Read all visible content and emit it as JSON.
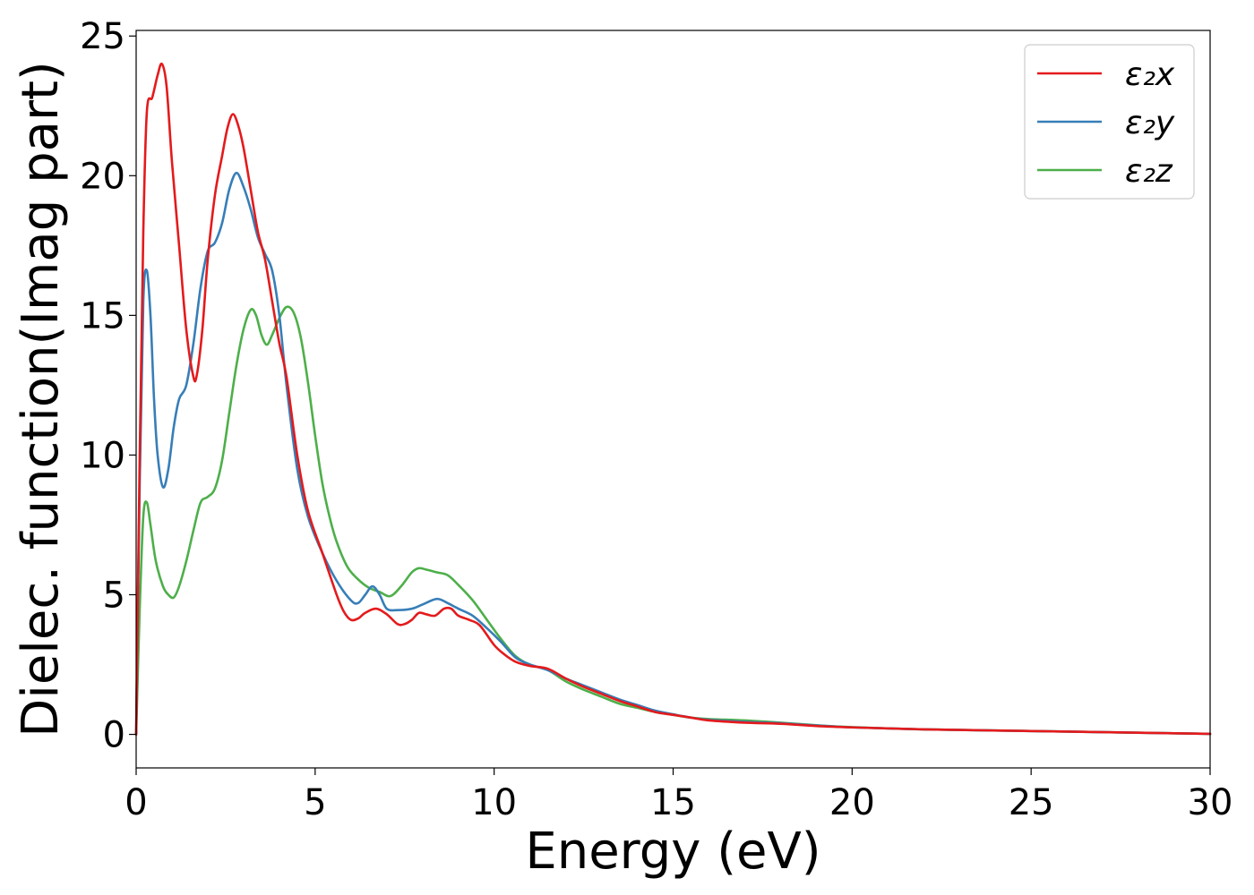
{
  "chart_data": {
    "type": "line",
    "title": "",
    "xlabel": "Energy (eV)",
    "ylabel": "Dielec. function(Imag part)",
    "xlim": [
      0,
      30
    ],
    "ylim": [
      -1.2,
      25.2
    ],
    "xticks": [
      0,
      5,
      10,
      15,
      20,
      25,
      30
    ],
    "yticks": [
      0,
      5,
      10,
      15,
      20,
      25
    ],
    "grid": false,
    "legend_position": "top-right",
    "series": [
      {
        "name": "ε₂x",
        "color": "#e41a1c",
        "points": [
          [
            0,
            0
          ],
          [
            0.1,
            10
          ],
          [
            0.2,
            18
          ],
          [
            0.3,
            22.3
          ],
          [
            0.45,
            22.8
          ],
          [
            0.6,
            23.6
          ],
          [
            0.72,
            24.0
          ],
          [
            0.85,
            23.2
          ],
          [
            1.0,
            20.5
          ],
          [
            1.2,
            17.5
          ],
          [
            1.4,
            14.5
          ],
          [
            1.6,
            12.8
          ],
          [
            1.7,
            12.9
          ],
          [
            1.85,
            14.5
          ],
          [
            2.0,
            17.0
          ],
          [
            2.2,
            19.3
          ],
          [
            2.4,
            20.7
          ],
          [
            2.55,
            21.7
          ],
          [
            2.7,
            22.2
          ],
          [
            2.85,
            21.8
          ],
          [
            3.0,
            21.0
          ],
          [
            3.2,
            19.5
          ],
          [
            3.4,
            18.0
          ],
          [
            3.6,
            17.0
          ],
          [
            3.8,
            15.5
          ],
          [
            4.0,
            14.0
          ],
          [
            4.2,
            12.8
          ],
          [
            4.5,
            10.0
          ],
          [
            4.8,
            8.0
          ],
          [
            5.2,
            6.5
          ],
          [
            5.6,
            5.0
          ],
          [
            5.8,
            4.4
          ],
          [
            6.0,
            4.1
          ],
          [
            6.2,
            4.15
          ],
          [
            6.4,
            4.35
          ],
          [
            6.7,
            4.5
          ],
          [
            7.0,
            4.3
          ],
          [
            7.3,
            3.95
          ],
          [
            7.5,
            3.95
          ],
          [
            7.7,
            4.1
          ],
          [
            7.9,
            4.35
          ],
          [
            8.1,
            4.3
          ],
          [
            8.35,
            4.25
          ],
          [
            8.6,
            4.5
          ],
          [
            8.8,
            4.5
          ],
          [
            9.0,
            4.25
          ],
          [
            9.3,
            4.1
          ],
          [
            9.6,
            3.9
          ],
          [
            10.0,
            3.2
          ],
          [
            10.3,
            2.85
          ],
          [
            10.6,
            2.6
          ],
          [
            11.0,
            2.45
          ],
          [
            11.5,
            2.35
          ],
          [
            12.0,
            2.0
          ],
          [
            12.5,
            1.7
          ],
          [
            13.0,
            1.45
          ],
          [
            13.5,
            1.2
          ],
          [
            14.0,
            1.0
          ],
          [
            14.5,
            0.8
          ],
          [
            15.0,
            0.7
          ],
          [
            15.5,
            0.6
          ],
          [
            16.0,
            0.5
          ],
          [
            17.0,
            0.42
          ],
          [
            18.0,
            0.38
          ],
          [
            19.0,
            0.3
          ],
          [
            20.0,
            0.25
          ],
          [
            22.0,
            0.18
          ],
          [
            25.0,
            0.12
          ],
          [
            28.0,
            0.06
          ],
          [
            30.0,
            0.02
          ]
        ]
      },
      {
        "name": "ε₂y",
        "color": "#377eb8",
        "points": [
          [
            0,
            0
          ],
          [
            0.1,
            9
          ],
          [
            0.2,
            15.5
          ],
          [
            0.3,
            16.6
          ],
          [
            0.4,
            15.0
          ],
          [
            0.5,
            12.0
          ],
          [
            0.6,
            10.0
          ],
          [
            0.75,
            8.85
          ],
          [
            0.9,
            9.5
          ],
          [
            1.05,
            11.0
          ],
          [
            1.2,
            12.0
          ],
          [
            1.4,
            12.5
          ],
          [
            1.6,
            14.0
          ],
          [
            1.8,
            16.0
          ],
          [
            2.0,
            17.3
          ],
          [
            2.2,
            17.6
          ],
          [
            2.4,
            18.3
          ],
          [
            2.6,
            19.5
          ],
          [
            2.8,
            20.1
          ],
          [
            3.0,
            19.6
          ],
          [
            3.2,
            18.8
          ],
          [
            3.4,
            17.8
          ],
          [
            3.6,
            17.2
          ],
          [
            3.8,
            16.6
          ],
          [
            4.0,
            15.0
          ],
          [
            4.2,
            12.5
          ],
          [
            4.5,
            9.5
          ],
          [
            4.8,
            7.8
          ],
          [
            5.2,
            6.5
          ],
          [
            5.6,
            5.5
          ],
          [
            6.0,
            4.8
          ],
          [
            6.2,
            4.7
          ],
          [
            6.4,
            5.0
          ],
          [
            6.6,
            5.3
          ],
          [
            6.8,
            5.0
          ],
          [
            7.0,
            4.5
          ],
          [
            7.3,
            4.45
          ],
          [
            7.7,
            4.5
          ],
          [
            8.0,
            4.65
          ],
          [
            8.4,
            4.85
          ],
          [
            8.7,
            4.7
          ],
          [
            9.0,
            4.5
          ],
          [
            9.4,
            4.25
          ],
          [
            9.8,
            3.8
          ],
          [
            10.2,
            3.3
          ],
          [
            10.6,
            2.75
          ],
          [
            11.0,
            2.5
          ],
          [
            11.5,
            2.3
          ],
          [
            12.0,
            2.0
          ],
          [
            12.5,
            1.75
          ],
          [
            13.0,
            1.5
          ],
          [
            13.5,
            1.25
          ],
          [
            14.0,
            1.05
          ],
          [
            14.5,
            0.85
          ],
          [
            15.0,
            0.72
          ],
          [
            15.5,
            0.6
          ],
          [
            16.0,
            0.52
          ],
          [
            17.0,
            0.45
          ],
          [
            18.0,
            0.4
          ],
          [
            19.0,
            0.32
          ],
          [
            20.0,
            0.25
          ],
          [
            22.0,
            0.18
          ],
          [
            25.0,
            0.12
          ],
          [
            28.0,
            0.06
          ],
          [
            30.0,
            0.02
          ]
        ]
      },
      {
        "name": "ε₂z",
        "color": "#4daf4a",
        "points": [
          [
            0,
            0
          ],
          [
            0.1,
            4.5
          ],
          [
            0.2,
            7.8
          ],
          [
            0.3,
            8.3
          ],
          [
            0.4,
            7.5
          ],
          [
            0.55,
            6.2
          ],
          [
            0.75,
            5.3
          ],
          [
            0.9,
            5.0
          ],
          [
            1.05,
            4.9
          ],
          [
            1.2,
            5.3
          ],
          [
            1.4,
            6.2
          ],
          [
            1.6,
            7.3
          ],
          [
            1.8,
            8.3
          ],
          [
            2.0,
            8.5
          ],
          [
            2.2,
            8.8
          ],
          [
            2.4,
            9.8
          ],
          [
            2.6,
            11.5
          ],
          [
            2.8,
            13.2
          ],
          [
            3.0,
            14.5
          ],
          [
            3.2,
            15.2
          ],
          [
            3.35,
            15.0
          ],
          [
            3.5,
            14.3
          ],
          [
            3.65,
            13.95
          ],
          [
            3.8,
            14.3
          ],
          [
            4.0,
            14.9
          ],
          [
            4.2,
            15.3
          ],
          [
            4.4,
            15.1
          ],
          [
            4.6,
            14.2
          ],
          [
            4.8,
            12.6
          ],
          [
            5.0,
            10.7
          ],
          [
            5.2,
            9.0
          ],
          [
            5.4,
            7.8
          ],
          [
            5.6,
            6.9
          ],
          [
            5.9,
            6.0
          ],
          [
            6.2,
            5.55
          ],
          [
            6.5,
            5.25
          ],
          [
            6.8,
            5.1
          ],
          [
            7.1,
            4.95
          ],
          [
            7.4,
            5.3
          ],
          [
            7.7,
            5.8
          ],
          [
            7.9,
            5.95
          ],
          [
            8.1,
            5.9
          ],
          [
            8.4,
            5.8
          ],
          [
            8.7,
            5.7
          ],
          [
            9.0,
            5.35
          ],
          [
            9.4,
            4.8
          ],
          [
            9.8,
            4.1
          ],
          [
            10.2,
            3.4
          ],
          [
            10.6,
            2.8
          ],
          [
            11.0,
            2.5
          ],
          [
            11.5,
            2.3
          ],
          [
            12.0,
            1.9
          ],
          [
            12.5,
            1.6
          ],
          [
            13.0,
            1.35
          ],
          [
            13.5,
            1.1
          ],
          [
            14.0,
            0.95
          ],
          [
            14.5,
            0.8
          ],
          [
            15.0,
            0.7
          ],
          [
            15.5,
            0.6
          ],
          [
            16.0,
            0.55
          ],
          [
            17.0,
            0.5
          ],
          [
            18.0,
            0.42
          ],
          [
            19.0,
            0.33
          ],
          [
            20.0,
            0.26
          ],
          [
            22.0,
            0.18
          ],
          [
            25.0,
            0.12
          ],
          [
            28.0,
            0.06
          ],
          [
            30.0,
            0.02
          ]
        ]
      }
    ]
  }
}
